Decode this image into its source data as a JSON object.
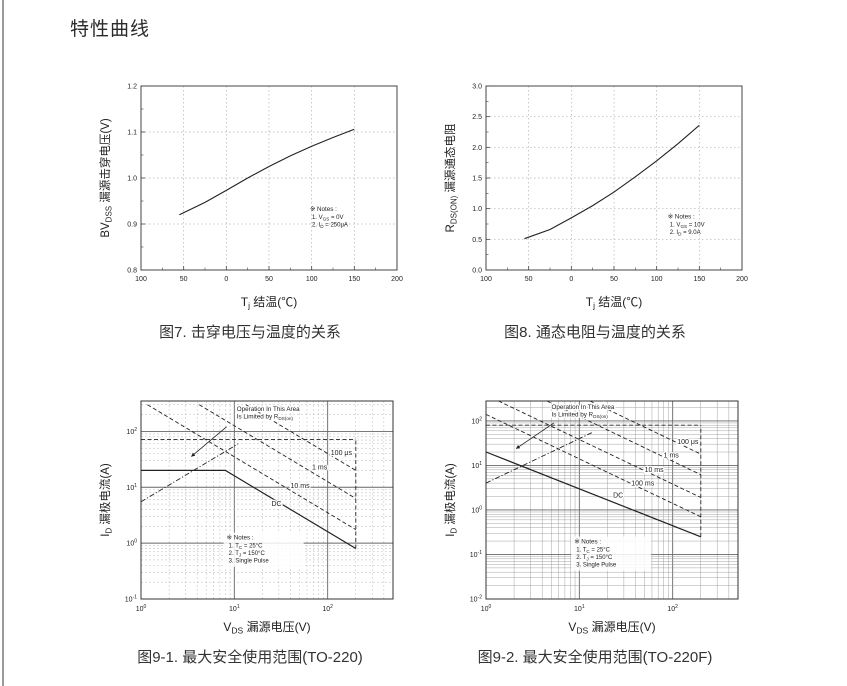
{
  "page": {
    "title": "特性曲线"
  },
  "chart_data": [
    {
      "id": "fig7",
      "type": "line",
      "caption": "图7. 击穿电压与温度的关系",
      "xlabel_parts": [
        [
          "T",
          0
        ],
        [
          "j",
          1
        ],
        [
          " 结温(℃)",
          0
        ]
      ],
      "ylabel_parts": [
        [
          "BV",
          0
        ],
        [
          "DSS",
          1
        ],
        [
          " 漏源击穿电压(V)",
          0
        ]
      ],
      "xlim": [
        -100,
        200
      ],
      "ylim": [
        0.8,
        1.2
      ],
      "xticks": [
        {
          "v": -100,
          "t": "100"
        },
        {
          "v": -50,
          "t": "50"
        },
        {
          "v": 0,
          "t": "0"
        },
        {
          "v": 50,
          "t": "50"
        },
        {
          "v": 100,
          "t": "100"
        },
        {
          "v": 150,
          "t": "150"
        },
        {
          "v": 200,
          "t": "200"
        }
      ],
      "yticks": [
        {
          "v": 0.8,
          "t": "0.8"
        },
        {
          "v": 0.9,
          "t": "0.9"
        },
        {
          "v": 1.0,
          "t": "1.0"
        },
        {
          "v": 1.1,
          "t": "1.1"
        },
        {
          "v": 1.2,
          "t": "1.2"
        }
      ],
      "series": [
        {
          "name": "bvdss-vs-tj",
          "style": "solid",
          "points": [
            [
              -55,
              0.92
            ],
            [
              -25,
              0.947
            ],
            [
              0,
              0.973
            ],
            [
              25,
              1.0
            ],
            [
              50,
              1.025
            ],
            [
              75,
              1.048
            ],
            [
              100,
              1.069
            ],
            [
              125,
              1.088
            ],
            [
              150,
              1.106
            ]
          ]
        }
      ],
      "notes": {
        "title": "※ Notes :",
        "fx": 0.66,
        "fy": 0.68,
        "lines": [
          [
            [
              "1. V",
              0
            ],
            [
              "GS",
              1
            ],
            [
              " = 0V",
              0
            ]
          ],
          [
            [
              "2. I",
              0
            ],
            [
              "D",
              1
            ],
            [
              " = 250μA",
              0
            ]
          ]
        ]
      }
    },
    {
      "id": "fig8",
      "type": "line",
      "caption": "图8. 通态电阻与温度的关系",
      "xlabel_parts": [
        [
          "T",
          0
        ],
        [
          "j",
          1
        ],
        [
          " 结温(℃)",
          0
        ]
      ],
      "ylabel_parts": [
        [
          "R",
          0
        ],
        [
          "DS(ON)",
          1
        ],
        [
          " 漏源通态电阻",
          0
        ]
      ],
      "xlim": [
        -100,
        200
      ],
      "ylim": [
        0,
        3
      ],
      "xticks": [
        {
          "v": -100,
          "t": "100"
        },
        {
          "v": -50,
          "t": "50"
        },
        {
          "v": 0,
          "t": "0"
        },
        {
          "v": 50,
          "t": "50"
        },
        {
          "v": 100,
          "t": "100"
        },
        {
          "v": 150,
          "t": "150"
        },
        {
          "v": 200,
          "t": "200"
        }
      ],
      "yticks": [
        {
          "v": 0,
          "t": "0.0"
        },
        {
          "v": 0.5,
          "t": "0.5"
        },
        {
          "v": 1.0,
          "t": "1.0"
        },
        {
          "v": 1.5,
          "t": "1.5"
        },
        {
          "v": 2.0,
          "t": "2.0"
        },
        {
          "v": 2.5,
          "t": "2.5"
        },
        {
          "v": 3.0,
          "t": "3.0"
        }
      ],
      "series": [
        {
          "name": "rdson-vs-tj",
          "style": "solid",
          "points": [
            [
              -55,
              0.51
            ],
            [
              -25,
              0.66
            ],
            [
              0,
              0.85
            ],
            [
              25,
              1.05
            ],
            [
              50,
              1.27
            ],
            [
              75,
              1.52
            ],
            [
              100,
              1.78
            ],
            [
              125,
              2.06
            ],
            [
              150,
              2.36
            ]
          ]
        }
      ],
      "notes": {
        "title": "※ Notes :",
        "fx": 0.71,
        "fy": 0.72,
        "lines": [
          [
            [
              "1. V",
              0
            ],
            [
              "GS",
              1
            ],
            [
              " = 10V",
              0
            ]
          ],
          [
            [
              "2. I",
              0
            ],
            [
              "D",
              1
            ],
            [
              " = 9.0A",
              0
            ]
          ]
        ]
      }
    },
    {
      "id": "fig9-1",
      "type": "soa",
      "caption": "图9-1. 最大安全使用范围(TO-220)",
      "xlabel_parts": [
        [
          "V",
          0
        ],
        [
          "DS",
          1
        ],
        [
          " 漏源电压(V)",
          0
        ]
      ],
      "ylabel_parts": [
        [
          "I",
          0
        ],
        [
          "D",
          1
        ],
        [
          " 漏极电流(A)",
          0
        ]
      ],
      "xlog": [
        0,
        2.7
      ],
      "ylog": [
        -1,
        2.544
      ],
      "xticks": [
        0,
        1,
        2
      ],
      "yticks": [
        2,
        1,
        0,
        -1
      ],
      "grid": {
        "minor": "dashed"
      },
      "series": [
        {
          "name": "rdson-limit-line",
          "style": "dashdot",
          "points": [
            [
              1,
              5.5
            ],
            [
              11,
              60
            ]
          ]
        },
        {
          "name": "pulse-current-cap",
          "style": "dashed",
          "points": [
            [
              1,
              72
            ],
            [
              200,
              72
            ]
          ]
        },
        {
          "name": "pulse-100us",
          "style": "dashed",
          "label": "100 μs",
          "label_at": [
            108,
            38
          ],
          "points": [
            [
              13.3,
              300
            ],
            [
              200,
              20
            ]
          ]
        },
        {
          "name": "pulse-1ms",
          "style": "dashed",
          "label": "1 ms",
          "label_at": [
            68,
            21
          ],
          "points": [
            [
              4.2,
              300
            ],
            [
              200,
              6.3
            ]
          ]
        },
        {
          "name": "pulse-10ms",
          "style": "dashed",
          "label": "10 ms",
          "label_at": [
            40,
            9.8
          ],
          "points": [
            [
              1.17,
              300
            ],
            [
              200,
              1.75
            ]
          ]
        },
        {
          "name": "dc",
          "style": "solid",
          "label": "DC",
          "label_at": [
            25,
            4.6
          ],
          "points": [
            [
              1,
              20
            ],
            [
              8,
              20
            ],
            [
              200,
              0.8
            ]
          ]
        },
        {
          "name": "vds-max-line",
          "style": "dashed",
          "points": [
            [
              200,
              0.8
            ],
            [
              200,
              72
            ]
          ]
        }
      ],
      "annotation": {
        "lines": [
          "Operation In This Area",
          "Is Limited by R"
        ],
        "sub": "DS(on)",
        "fx": 0.38,
        "fy": 0.02,
        "arrow": {
          "from": [
            0.34,
            0.13
          ],
          "to": [
            0.2,
            0.28
          ]
        }
      },
      "notes": {
        "title": "※ Notes :",
        "fx": 0.34,
        "fy": 0.7,
        "lines": [
          [
            [
              "1. T",
              0
            ],
            [
              "C",
              1
            ],
            [
              " = 25°C",
              0
            ]
          ],
          [
            [
              "2. T",
              0
            ],
            [
              "J",
              1
            ],
            [
              " = 150°C",
              0
            ]
          ],
          [
            [
              "3. Single Pulse",
              0
            ]
          ]
        ]
      }
    },
    {
      "id": "fig9-2",
      "type": "soa",
      "caption": "图9-2. 最大安全使用范围(TO-220F)",
      "xlabel_parts": [
        [
          "V",
          0
        ],
        [
          "DS",
          1
        ],
        [
          " 漏源电压(V)",
          0
        ]
      ],
      "ylabel_parts": [
        [
          "I",
          0
        ],
        [
          "D",
          1
        ],
        [
          " 漏极电流(A)",
          0
        ]
      ],
      "xlog": [
        0,
        2.7
      ],
      "ylog": [
        -2,
        2.447
      ],
      "xticks": [
        0,
        1,
        2
      ],
      "yticks": [
        2,
        1,
        0,
        -1,
        -2
      ],
      "grid": {
        "minor": "solid"
      },
      "series": [
        {
          "name": "rdson-limit-line",
          "style": "dashdot",
          "points": [
            [
              1,
              4
            ],
            [
              14,
              56
            ]
          ]
        },
        {
          "name": "pulse-current-cap",
          "style": "dashed",
          "points": [
            [
              1,
              80
            ],
            [
              200,
              80
            ]
          ]
        },
        {
          "name": "pulse-100us",
          "style": "dashed",
          "label": "100 μs",
          "label_at": [
            112,
            30
          ],
          "points": [
            [
              13,
              280
            ],
            [
              200,
              18
            ]
          ]
        },
        {
          "name": "pulse-1ms",
          "style": "dashed",
          "label": "1 ms",
          "label_at": [
            80,
            15
          ],
          "points": [
            [
              4.5,
              280
            ],
            [
              200,
              6.2
            ]
          ]
        },
        {
          "name": "pulse-10ms",
          "style": "dashed",
          "label": "10 ms",
          "label_at": [
            50,
            7.2
          ],
          "points": [
            [
              1.36,
              280
            ],
            [
              200,
              1.9
            ]
          ]
        },
        {
          "name": "pulse-100ms",
          "style": "dashed",
          "label": "100 ms",
          "label_at": [
            36,
            3.5
          ],
          "points": [
            [
              1,
              140
            ],
            [
              200,
              0.7
            ]
          ]
        },
        {
          "name": "dc",
          "style": "solid",
          "label": "DC",
          "label_at": [
            23,
            1.9
          ],
          "points": [
            [
              1,
              20
            ],
            [
              200,
              0.25
            ]
          ]
        },
        {
          "name": "vds-max-line",
          "style": "dashed",
          "points": [
            [
              200,
              0.25
            ],
            [
              200,
              80
            ]
          ]
        }
      ],
      "annotation": {
        "lines": [
          "Operation In This Area",
          "Is Limited by R"
        ],
        "sub": "DS(on)",
        "fx": 0.26,
        "fy": 0.01,
        "arrow": {
          "from": [
            0.27,
            0.11
          ],
          "to": [
            0.12,
            0.24
          ]
        }
      },
      "notes": {
        "title": "※ Notes :",
        "fx": 0.35,
        "fy": 0.72,
        "lines": [
          [
            [
              "1. T",
              0
            ],
            [
              "C",
              1
            ],
            [
              " = 25°C",
              0
            ]
          ],
          [
            [
              "2. T",
              0
            ],
            [
              "J",
              1
            ],
            [
              " = 150°C",
              0
            ]
          ],
          [
            [
              "3. Single Pulse",
              0
            ]
          ]
        ]
      }
    }
  ]
}
